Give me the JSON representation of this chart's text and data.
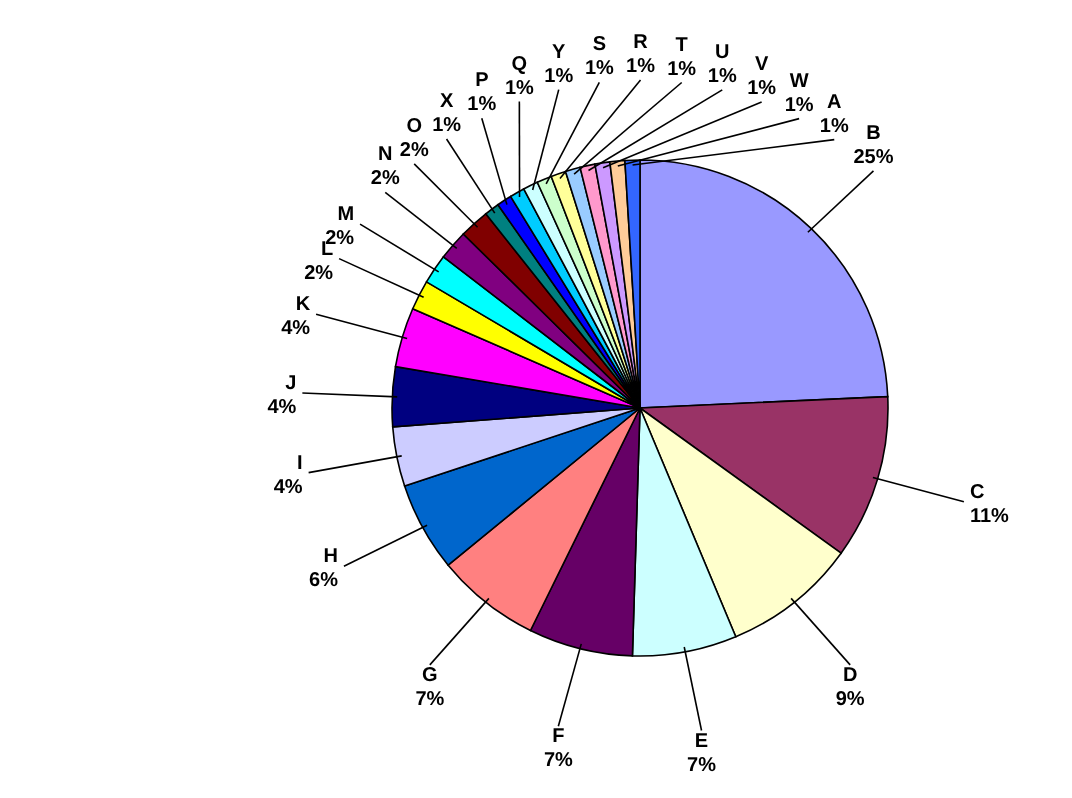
{
  "chart_data": {
    "type": "pie",
    "categories": [
      "B",
      "C",
      "D",
      "E",
      "F",
      "G",
      "H",
      "I",
      "J",
      "K",
      "L",
      "M",
      "N",
      "O",
      "X",
      "P",
      "Q",
      "Y",
      "S",
      "R",
      "T",
      "U",
      "V",
      "W",
      "A"
    ],
    "values": [
      25,
      11,
      9,
      7,
      7,
      7,
      6,
      4,
      4,
      4,
      2,
      2,
      2,
      2,
      1,
      1,
      1,
      1,
      1,
      1,
      1,
      1,
      1,
      1,
      1
    ],
    "value_labels": [
      "25%",
      "11%",
      "9%",
      "7%",
      "7%",
      "7%",
      "6%",
      "4%",
      "4%",
      "4%",
      "2%",
      "2%",
      "2%",
      "2%",
      "1%",
      "1%",
      "1%",
      "1%",
      "1%",
      "1%",
      "1%",
      "1%",
      "1%",
      "1%",
      "1%"
    ],
    "colors": [
      "#9999ff",
      "#993366",
      "#ffffcc",
      "#ccffff",
      "#660066",
      "#ff8080",
      "#0066cc",
      "#ccccff",
      "#000080",
      "#ff00ff",
      "#ffff00",
      "#00ffff",
      "#800080",
      "#800000",
      "#008080",
      "#0000ff",
      "#00ccff",
      "#ccffff",
      "#ccffcc",
      "#ffff99",
      "#99ccff",
      "#ff99cc",
      "#cc99ff",
      "#ffcc99",
      "#3366ff"
    ],
    "legend": false
  }
}
